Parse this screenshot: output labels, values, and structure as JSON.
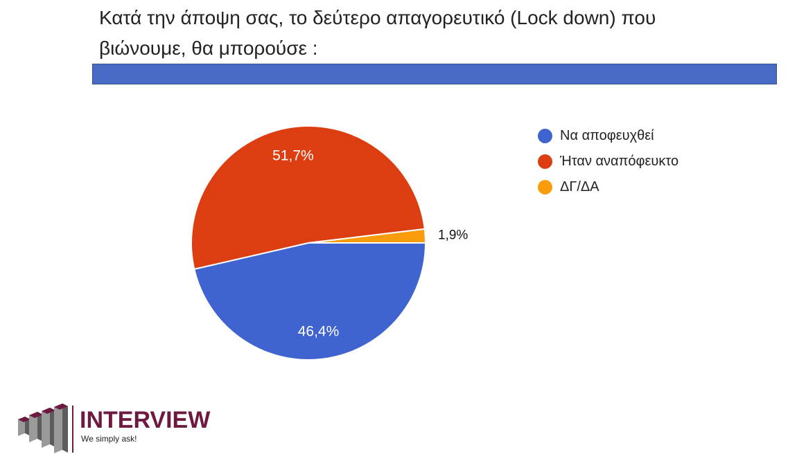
{
  "title": {
    "line1": "Κατά την άποψη σας, το δεύτερο απαγορευτικό (Lock down) που",
    "line2": "βιώνουμε, θα μπορούσε :"
  },
  "header_bar_color": "#4a6cc7",
  "chart_data": {
    "type": "pie",
    "categories": [
      "Να αποφευχθεί",
      "Ήταν αναπόφευκτο",
      "ΔΓ/ΔΑ"
    ],
    "values": [
      46.4,
      51.7,
      1.9
    ],
    "data_labels": [
      "46,4%",
      "51,7%",
      "1,9%"
    ],
    "colors": [
      "#3f63cf",
      "#dc3e12",
      "#f99d0c"
    ],
    "start_angle_deg": 0,
    "direction": "clockwise",
    "legend_position": "right",
    "title": ""
  },
  "legend": {
    "items": [
      {
        "label": "Να αποφευχθεί",
        "color": "#3f63cf"
      },
      {
        "label": "Ήταν αναπόφευκτο",
        "color": "#dc3e12"
      },
      {
        "label": "ΔΓ/ΔΑ",
        "color": "#f99d0c"
      }
    ]
  },
  "logo": {
    "wordmark": "INTERVIEW",
    "tagline": "We simply ask!",
    "color": "#6e1a40"
  }
}
